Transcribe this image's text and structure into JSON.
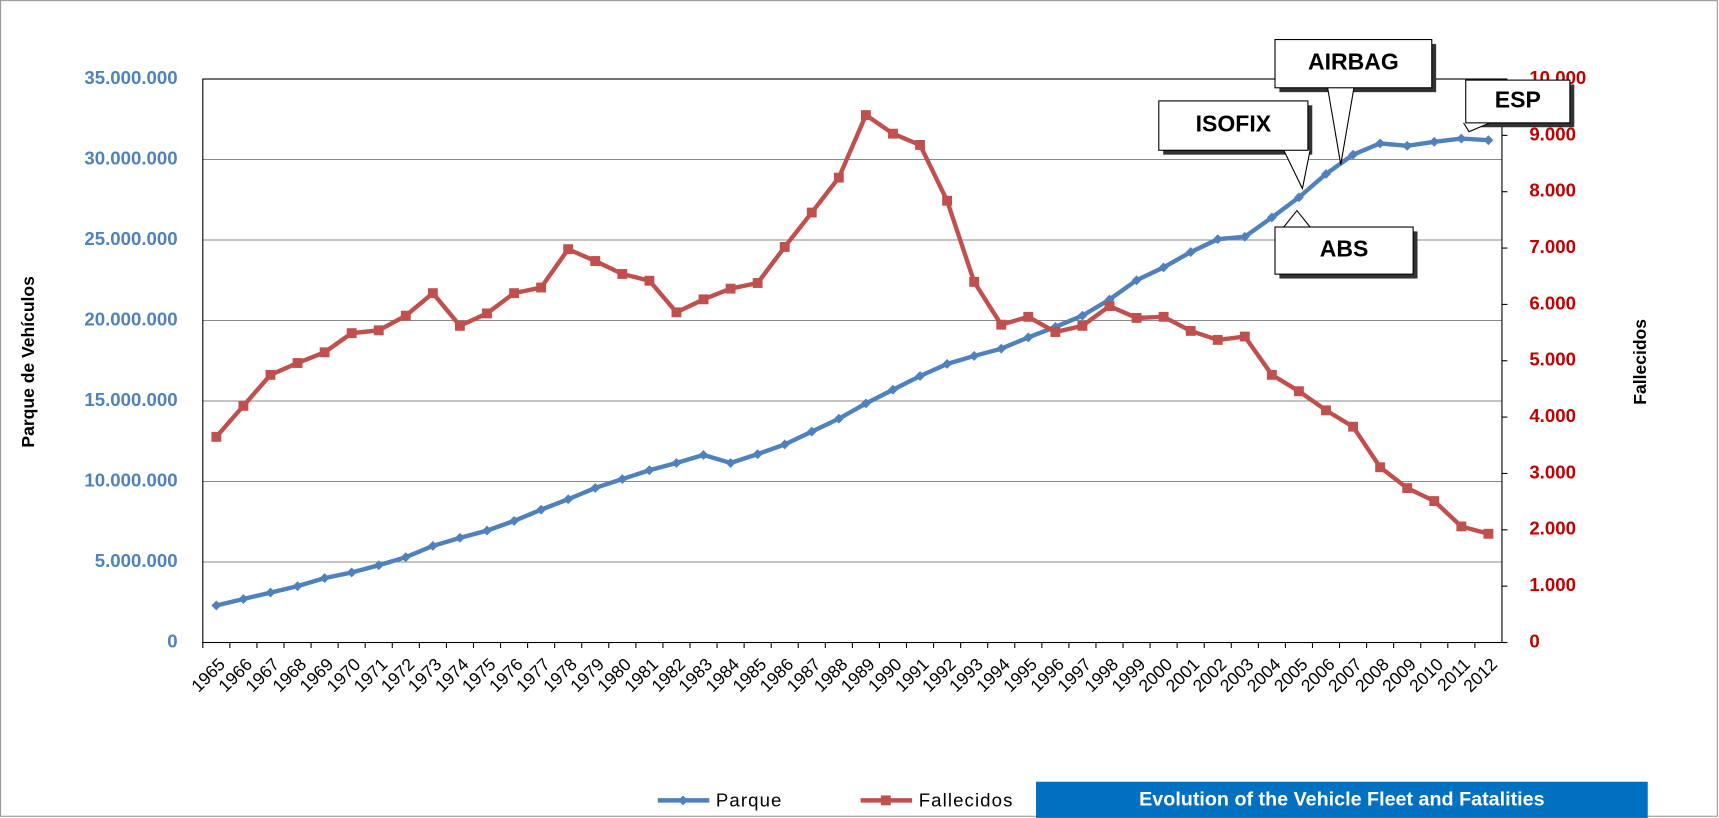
{
  "chart_data": {
    "type": "line",
    "title": "Evolution of the Vehicle Fleet and Fatalities",
    "y_label": "Parque de Vehículos",
    "y2_label": "Fallecidos",
    "categories": [
      "1965",
      "1966",
      "1967",
      "1968",
      "1969",
      "1970",
      "1971",
      "1972",
      "1973",
      "1974",
      "1975",
      "1976",
      "1977",
      "1978",
      "1979",
      "1980",
      "1981",
      "1982",
      "1983",
      "1984",
      "1985",
      "1986",
      "1987",
      "1988",
      "1989",
      "1990",
      "1991",
      "1992",
      "1993",
      "1994",
      "1995",
      "1996",
      "1997",
      "1998",
      "1999",
      "2000",
      "2001",
      "2002",
      "2003",
      "2004",
      "2005",
      "2006",
      "2007",
      "2008",
      "2009",
      "2010",
      "2011",
      "2012"
    ],
    "series": [
      {
        "name": "Parque",
        "color": "#4f81bd",
        "marker": "diamond",
        "values": [
          2300000,
          2700000,
          3100000,
          3500000,
          4000000,
          4350000,
          4800000,
          5300000,
          6000000,
          6500000,
          6950000,
          7550000,
          8250000,
          8900000,
          9600000,
          10150000,
          10700000,
          11150000,
          11650000,
          11150000,
          11700000,
          12300000,
          13100000,
          13900000,
          14850000,
          15700000,
          16550000,
          17300000,
          17800000,
          18250000,
          18950000,
          19600000,
          20300000,
          21300000,
          22500000,
          23300000,
          24250000,
          25050000,
          25200000,
          26400000,
          27650000,
          29100000,
          30300000,
          31000000,
          30850000,
          31100000,
          31300000,
          31200000
        ]
      },
      {
        "name": "Fallecidos",
        "color": "#c0504d",
        "marker": "square",
        "axis": "y2",
        "values": [
          3650,
          4200,
          4750,
          4960,
          5150,
          5490,
          5540,
          5800,
          6200,
          5620,
          5840,
          6200,
          6300,
          6980,
          6770,
          6540,
          6420,
          5860,
          6090,
          6280,
          6380,
          7020,
          7630,
          8250,
          9360,
          9030,
          8830,
          7840,
          6400,
          5640,
          5780,
          5510,
          5620,
          5970,
          5760,
          5780,
          5530,
          5370,
          5430,
          4750,
          4460,
          4120,
          3830,
          3110,
          2740,
          2510,
          2060,
          1930
        ]
      }
    ],
    "ylim": [
      0,
      35000000
    ],
    "yticks": [
      0,
      {
        "value": 5000000,
        "label": "5.000.000"
      },
      {
        "value": 10000000,
        "label": "10.000.000"
      },
      {
        "value": 15000000,
        "label": "15.000.000"
      },
      {
        "value": 20000000,
        "label": "20.000.000"
      },
      {
        "value": 25000000,
        "label": "25.000.000"
      },
      {
        "value": 30000000,
        "label": "30.000.000"
      },
      {
        "value": 35000000,
        "label": "35.000.000"
      }
    ],
    "y2lim": [
      0,
      10000
    ],
    "y2ticks": [
      0,
      {
        "value": 1000,
        "label": "1.000"
      },
      {
        "value": 2000,
        "label": "2.000"
      },
      {
        "value": 3000,
        "label": "3.000"
      },
      {
        "value": 4000,
        "label": "4.000"
      },
      {
        "value": 5000,
        "label": "5.000"
      },
      {
        "value": 6000,
        "label": "6.000"
      },
      {
        "value": 7000,
        "label": "7.000"
      },
      {
        "value": 8000,
        "label": "8.000"
      },
      {
        "value": 9000,
        "label": "9.000"
      },
      {
        "value": 10000,
        "label": "10.000"
      }
    ],
    "grid": true,
    "legend": "bottom",
    "annotations": [
      "AIRBAG",
      "ISOFIX",
      "ESP",
      "ABS"
    ]
  }
}
